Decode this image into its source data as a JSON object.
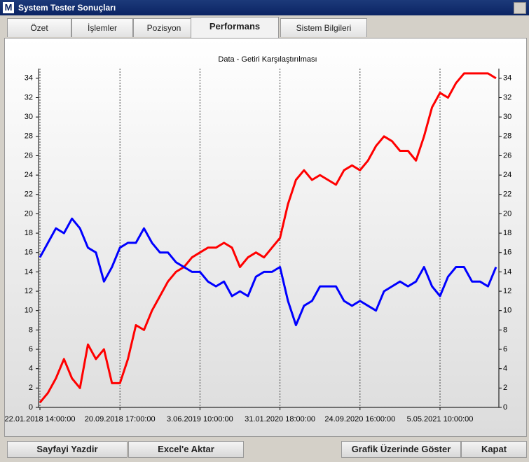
{
  "window": {
    "title": "System Tester Sonuçları",
    "icon": "M"
  },
  "tabs": [
    "Özet",
    "İşlemler",
    "Pozisyon",
    "Performans",
    "Sistem Bilgileri"
  ],
  "active_tab": 3,
  "buttons": [
    "Sayfayi Yazdir",
    "Excel'e Aktar",
    "Grafik Üzerinde Göster",
    "Kapat"
  ],
  "chart_data": {
    "type": "line",
    "title": "Data - Getiri Karşılaştırılması",
    "categories": [
      "22.01.2018 14:00:00",
      null,
      null,
      null,
      null,
      null,
      null,
      null,
      null,
      null,
      "20.09.2018 17:00:00",
      null,
      null,
      null,
      null,
      null,
      null,
      null,
      null,
      null,
      "3.06.2019 10:00:00",
      null,
      null,
      null,
      null,
      null,
      null,
      null,
      null,
      null,
      "31.01.2020 18:00:00",
      null,
      null,
      null,
      null,
      null,
      null,
      null,
      null,
      null,
      "24.09.2020 16:00:00",
      null,
      null,
      null,
      null,
      null,
      null,
      null,
      null,
      null,
      "5.05.2021 10:00:00",
      null,
      null,
      null,
      null,
      null,
      null,
      null
    ],
    "series": [
      {
        "color": "#ff0000",
        "values": [
          0.5,
          1.5,
          3,
          5,
          3,
          2,
          6.5,
          5,
          6,
          2.5,
          2.5,
          5,
          8.5,
          8,
          10,
          11.5,
          13,
          14,
          14.5,
          15.5,
          16,
          16.5,
          16.5,
          17,
          16.5,
          14.5,
          15.5,
          16,
          15.5,
          16.5,
          17.5,
          21,
          23.5,
          24.5,
          23.5,
          24,
          23.5,
          23,
          24.5,
          25,
          24.5,
          25.5,
          27,
          28,
          27.5,
          26.5,
          26.5,
          25.5,
          28,
          31,
          32.5,
          32,
          33.5,
          34.5,
          34.5,
          34.5,
          34.5,
          34
        ]
      },
      {
        "color": "#0000ff",
        "values": [
          15.5,
          17,
          18.5,
          18,
          19.5,
          18.5,
          16.5,
          16,
          13,
          14.5,
          16.5,
          17,
          17,
          18.5,
          17,
          16,
          16,
          15,
          14.5,
          14,
          14,
          13,
          12.5,
          13,
          11.5,
          12,
          11.5,
          13.5,
          14,
          14,
          14.5,
          11,
          8.5,
          10.5,
          11,
          12.5,
          12.5,
          12.5,
          11,
          10.5,
          11,
          10.5,
          10,
          12,
          12.5,
          13,
          12.5,
          13,
          14.5,
          12.5,
          11.5,
          13.5,
          14.5,
          14.5,
          13,
          13,
          12.5,
          14.5
        ]
      }
    ],
    "ylim": [
      0,
      35
    ],
    "yticks": [
      0,
      2,
      4,
      6,
      8,
      10,
      12,
      14,
      16,
      18,
      20,
      22,
      24,
      26,
      28,
      30,
      32,
      34
    ],
    "grid": true
  }
}
